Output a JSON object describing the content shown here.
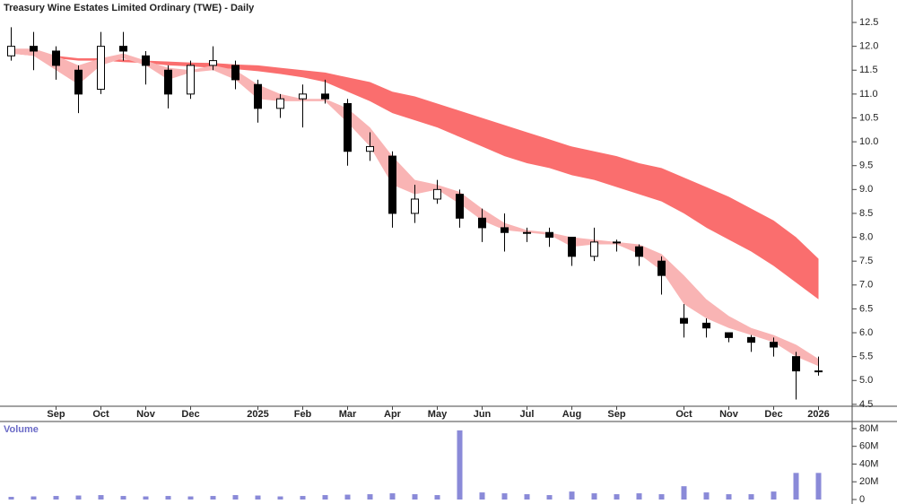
{
  "chart_data": [
    {
      "type": "candlestick",
      "title": "Treasury Wine Estates Limited Ordinary (TWE) - Daily",
      "categories": [
        null,
        null,
        "Sep",
        null,
        "Oct",
        null,
        "Nov",
        null,
        "Dec",
        null,
        null,
        "2025",
        null,
        "Feb",
        null,
        "Mar",
        null,
        "Apr",
        null,
        "May",
        null,
        "Jun",
        null,
        "Jul",
        null,
        "Aug",
        null,
        "Sep",
        null,
        null,
        "Oct",
        null,
        "Nov",
        null,
        "Dec",
        null,
        "2026"
      ],
      "open": [
        11.8,
        12.0,
        11.9,
        11.5,
        11.1,
        12.0,
        11.8,
        11.5,
        11.0,
        11.6,
        11.6,
        11.2,
        10.7,
        10.9,
        11.0,
        10.8,
        9.8,
        9.7,
        8.5,
        8.8,
        8.9,
        8.4,
        8.2,
        8.1,
        8.1,
        8.0,
        7.6,
        7.9,
        7.8,
        7.5,
        6.3,
        6.2,
        6.0,
        5.9,
        5.8,
        5.5,
        5.2
      ],
      "high": [
        12.4,
        12.3,
        12.0,
        11.6,
        12.3,
        12.3,
        11.9,
        11.6,
        11.7,
        12.0,
        11.7,
        11.3,
        11.0,
        11.2,
        11.3,
        10.9,
        10.2,
        9.8,
        9.1,
        9.2,
        9.0,
        8.6,
        8.5,
        8.2,
        8.2,
        8.0,
        8.2,
        7.95,
        7.85,
        7.6,
        6.6,
        6.3,
        6.0,
        5.95,
        5.9,
        5.6,
        5.5
      ],
      "low": [
        11.7,
        11.5,
        11.3,
        10.6,
        11.0,
        11.7,
        11.2,
        10.7,
        10.9,
        11.5,
        11.1,
        10.4,
        10.5,
        10.3,
        10.8,
        9.5,
        9.6,
        8.2,
        8.3,
        8.7,
        8.2,
        7.9,
        7.7,
        7.9,
        7.8,
        7.4,
        7.5,
        7.7,
        7.4,
        6.8,
        5.9,
        5.9,
        5.8,
        5.6,
        5.5,
        4.6,
        5.1
      ],
      "close": [
        12.0,
        11.9,
        11.6,
        11.0,
        12.0,
        11.9,
        11.6,
        11.0,
        11.6,
        11.7,
        11.3,
        10.7,
        10.9,
        11.0,
        10.9,
        9.8,
        9.9,
        8.5,
        8.8,
        9.0,
        8.4,
        8.2,
        8.1,
        8.1,
        8.0,
        7.6,
        7.9,
        7.9,
        7.6,
        7.2,
        6.2,
        6.1,
        5.9,
        5.8,
        5.7,
        5.2,
        5.2
      ],
      "bands": [
        {
          "color": "#fa6e6e",
          "upper": [
            11.9,
            11.85,
            11.8,
            11.75,
            11.75,
            11.72,
            11.7,
            11.68,
            11.66,
            11.65,
            11.62,
            11.6,
            11.55,
            11.5,
            11.45,
            11.35,
            11.25,
            11.05,
            10.95,
            10.8,
            10.65,
            10.5,
            10.35,
            10.2,
            10.05,
            9.9,
            9.8,
            9.7,
            9.55,
            9.45,
            9.25,
            9.05,
            8.85,
            8.6,
            8.35,
            8.0,
            7.55
          ],
          "lower": [
            11.85,
            11.8,
            11.75,
            11.7,
            11.7,
            11.67,
            11.65,
            11.6,
            11.58,
            11.55,
            11.52,
            11.48,
            11.42,
            11.35,
            11.25,
            11.05,
            10.85,
            10.6,
            10.45,
            10.3,
            10.1,
            9.9,
            9.7,
            9.55,
            9.45,
            9.3,
            9.2,
            9.05,
            8.9,
            8.75,
            8.5,
            8.2,
            7.95,
            7.7,
            7.4,
            7.05,
            6.7
          ]
        },
        {
          "color": "#f9b4b4",
          "upper": [
            11.95,
            11.95,
            11.8,
            11.6,
            11.75,
            11.85,
            11.7,
            11.55,
            11.5,
            11.6,
            11.5,
            11.2,
            11.0,
            10.9,
            10.9,
            10.7,
            10.3,
            9.7,
            9.2,
            9.1,
            8.95,
            8.6,
            8.3,
            8.15,
            8.1,
            8.0,
            7.95,
            7.9,
            7.85,
            7.65,
            7.2,
            6.7,
            6.35,
            6.1,
            5.95,
            5.75,
            5.45
          ],
          "lower": [
            11.85,
            11.8,
            11.5,
            11.2,
            11.6,
            11.75,
            11.6,
            11.3,
            11.45,
            11.5,
            11.3,
            10.9,
            10.85,
            10.85,
            10.85,
            10.4,
            9.9,
            9.1,
            8.9,
            9.0,
            8.7,
            8.35,
            8.15,
            8.1,
            8.05,
            7.8,
            7.85,
            7.85,
            7.65,
            7.3,
            6.6,
            6.3,
            6.1,
            5.95,
            5.8,
            5.5,
            5.3
          ]
        }
      ],
      "ylim": [
        4.46,
        12.97
      ],
      "yticks": [
        4.5,
        {
          "value": 5,
          "label": "5.0"
        },
        5.5,
        {
          "value": 6,
          "label": "6.0"
        },
        6.5,
        {
          "value": 7,
          "label": "7.0"
        },
        7.5,
        {
          "value": 8,
          "label": "8.0"
        },
        8.5,
        {
          "value": 9,
          "label": "9.0"
        },
        9.5,
        {
          "value": 10,
          "label": "10.0"
        },
        10.5,
        {
          "value": 11,
          "label": "11.0"
        },
        11.5,
        {
          "value": 12,
          "label": "12.0"
        },
        12.5
      ]
    },
    {
      "type": "bar",
      "title": "Volume",
      "color": "#8a8ad8",
      "values": [
        3000000,
        3500000,
        4000000,
        4500000,
        5000000,
        4000000,
        3500000,
        4000000,
        3500000,
        4000000,
        5000000,
        4500000,
        3500000,
        4000000,
        5000000,
        5500000,
        6000000,
        7000000,
        6000000,
        5000000,
        78000000,
        8000000,
        7000000,
        6000000,
        5000000,
        9000000,
        7000000,
        6000000,
        7000000,
        6000000,
        15000000,
        8000000,
        6000000,
        6000000,
        9000000,
        30000000,
        30000000
      ],
      "ylim": [
        0,
        88000000
      ],
      "yticks": [
        0,
        {
          "value": 20000000,
          "label": "20M"
        },
        {
          "value": 40000000,
          "label": "40M"
        },
        {
          "value": 60000000,
          "label": "60M"
        },
        {
          "value": 80000000,
          "label": "80M"
        }
      ]
    }
  ]
}
